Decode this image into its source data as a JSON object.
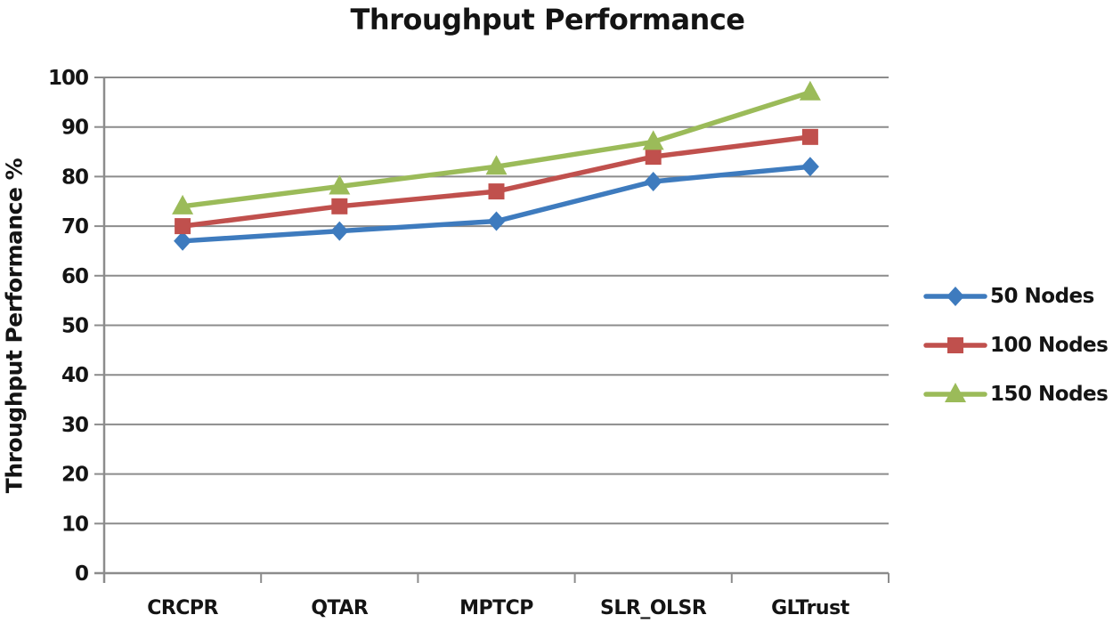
{
  "chart_data": {
    "type": "line",
    "title": "Throughput Performance",
    "ylabel": "Throughput Performance %",
    "xlabel": "",
    "categories": [
      "CRCPR",
      "QTAR",
      "MPTCP",
      "SLR_OLSR",
      "GLTrust"
    ],
    "series": [
      {
        "name": "50 Nodes",
        "marker": "diamond",
        "color": "#3E7BBE",
        "values": [
          67,
          69,
          71,
          79,
          82
        ]
      },
      {
        "name": "100 Nodes",
        "marker": "square",
        "color": "#C0504D",
        "values": [
          70,
          74,
          77,
          84,
          88
        ]
      },
      {
        "name": "150 Nodes",
        "marker": "triangle",
        "color": "#9BBB59",
        "values": [
          74,
          78,
          82,
          87,
          97
        ]
      }
    ],
    "ylim": [
      0,
      100
    ],
    "yticks": [
      0,
      10,
      20,
      30,
      40,
      50,
      60,
      70,
      80,
      90,
      100
    ],
    "grid": true,
    "legend_position": "right",
    "gridline_color": "#8C8C8C",
    "axis_color": "#8C8C8C",
    "text_color": "#141414",
    "background_color": "#FFFFFF"
  }
}
